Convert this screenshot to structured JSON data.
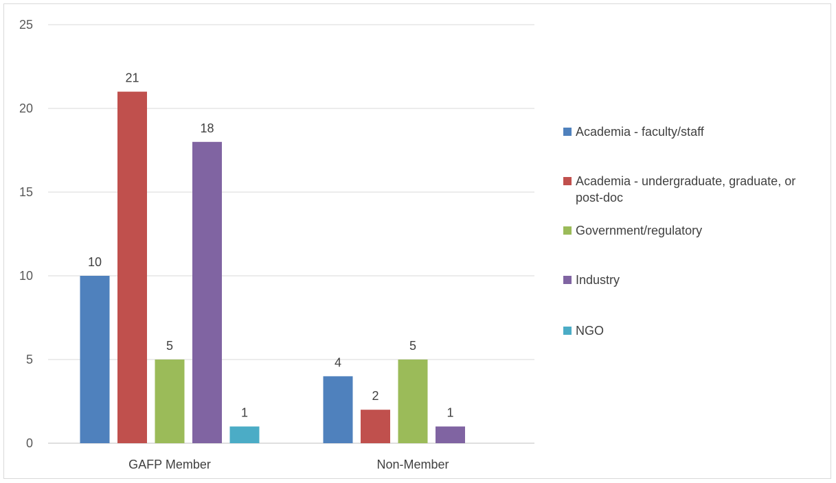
{
  "chart_data": {
    "type": "bar",
    "title": "",
    "xlabel": "",
    "ylabel": "",
    "categories": [
      "GAFP Member",
      "Non-Member"
    ],
    "series": [
      {
        "name": "Academia - faculty/staff",
        "color": "#4f81bd",
        "values": [
          10,
          4
        ]
      },
      {
        "name": "Academia - undergraduate, graduate, or post-doc",
        "color": "#c0504d",
        "values": [
          21,
          2
        ]
      },
      {
        "name": "Government/regulatory",
        "color": "#9bbb59",
        "values": [
          5,
          5
        ]
      },
      {
        "name": "Industry",
        "color": "#8064a2",
        "values": [
          18,
          1
        ]
      },
      {
        "name": "NGO",
        "color": "#4bacc6",
        "values": [
          1,
          null
        ]
      }
    ],
    "ylim": [
      0,
      25
    ],
    "yticks": [
      0,
      5,
      10,
      15,
      20,
      25
    ],
    "grid": true,
    "legend": "right",
    "data_labels": true
  }
}
